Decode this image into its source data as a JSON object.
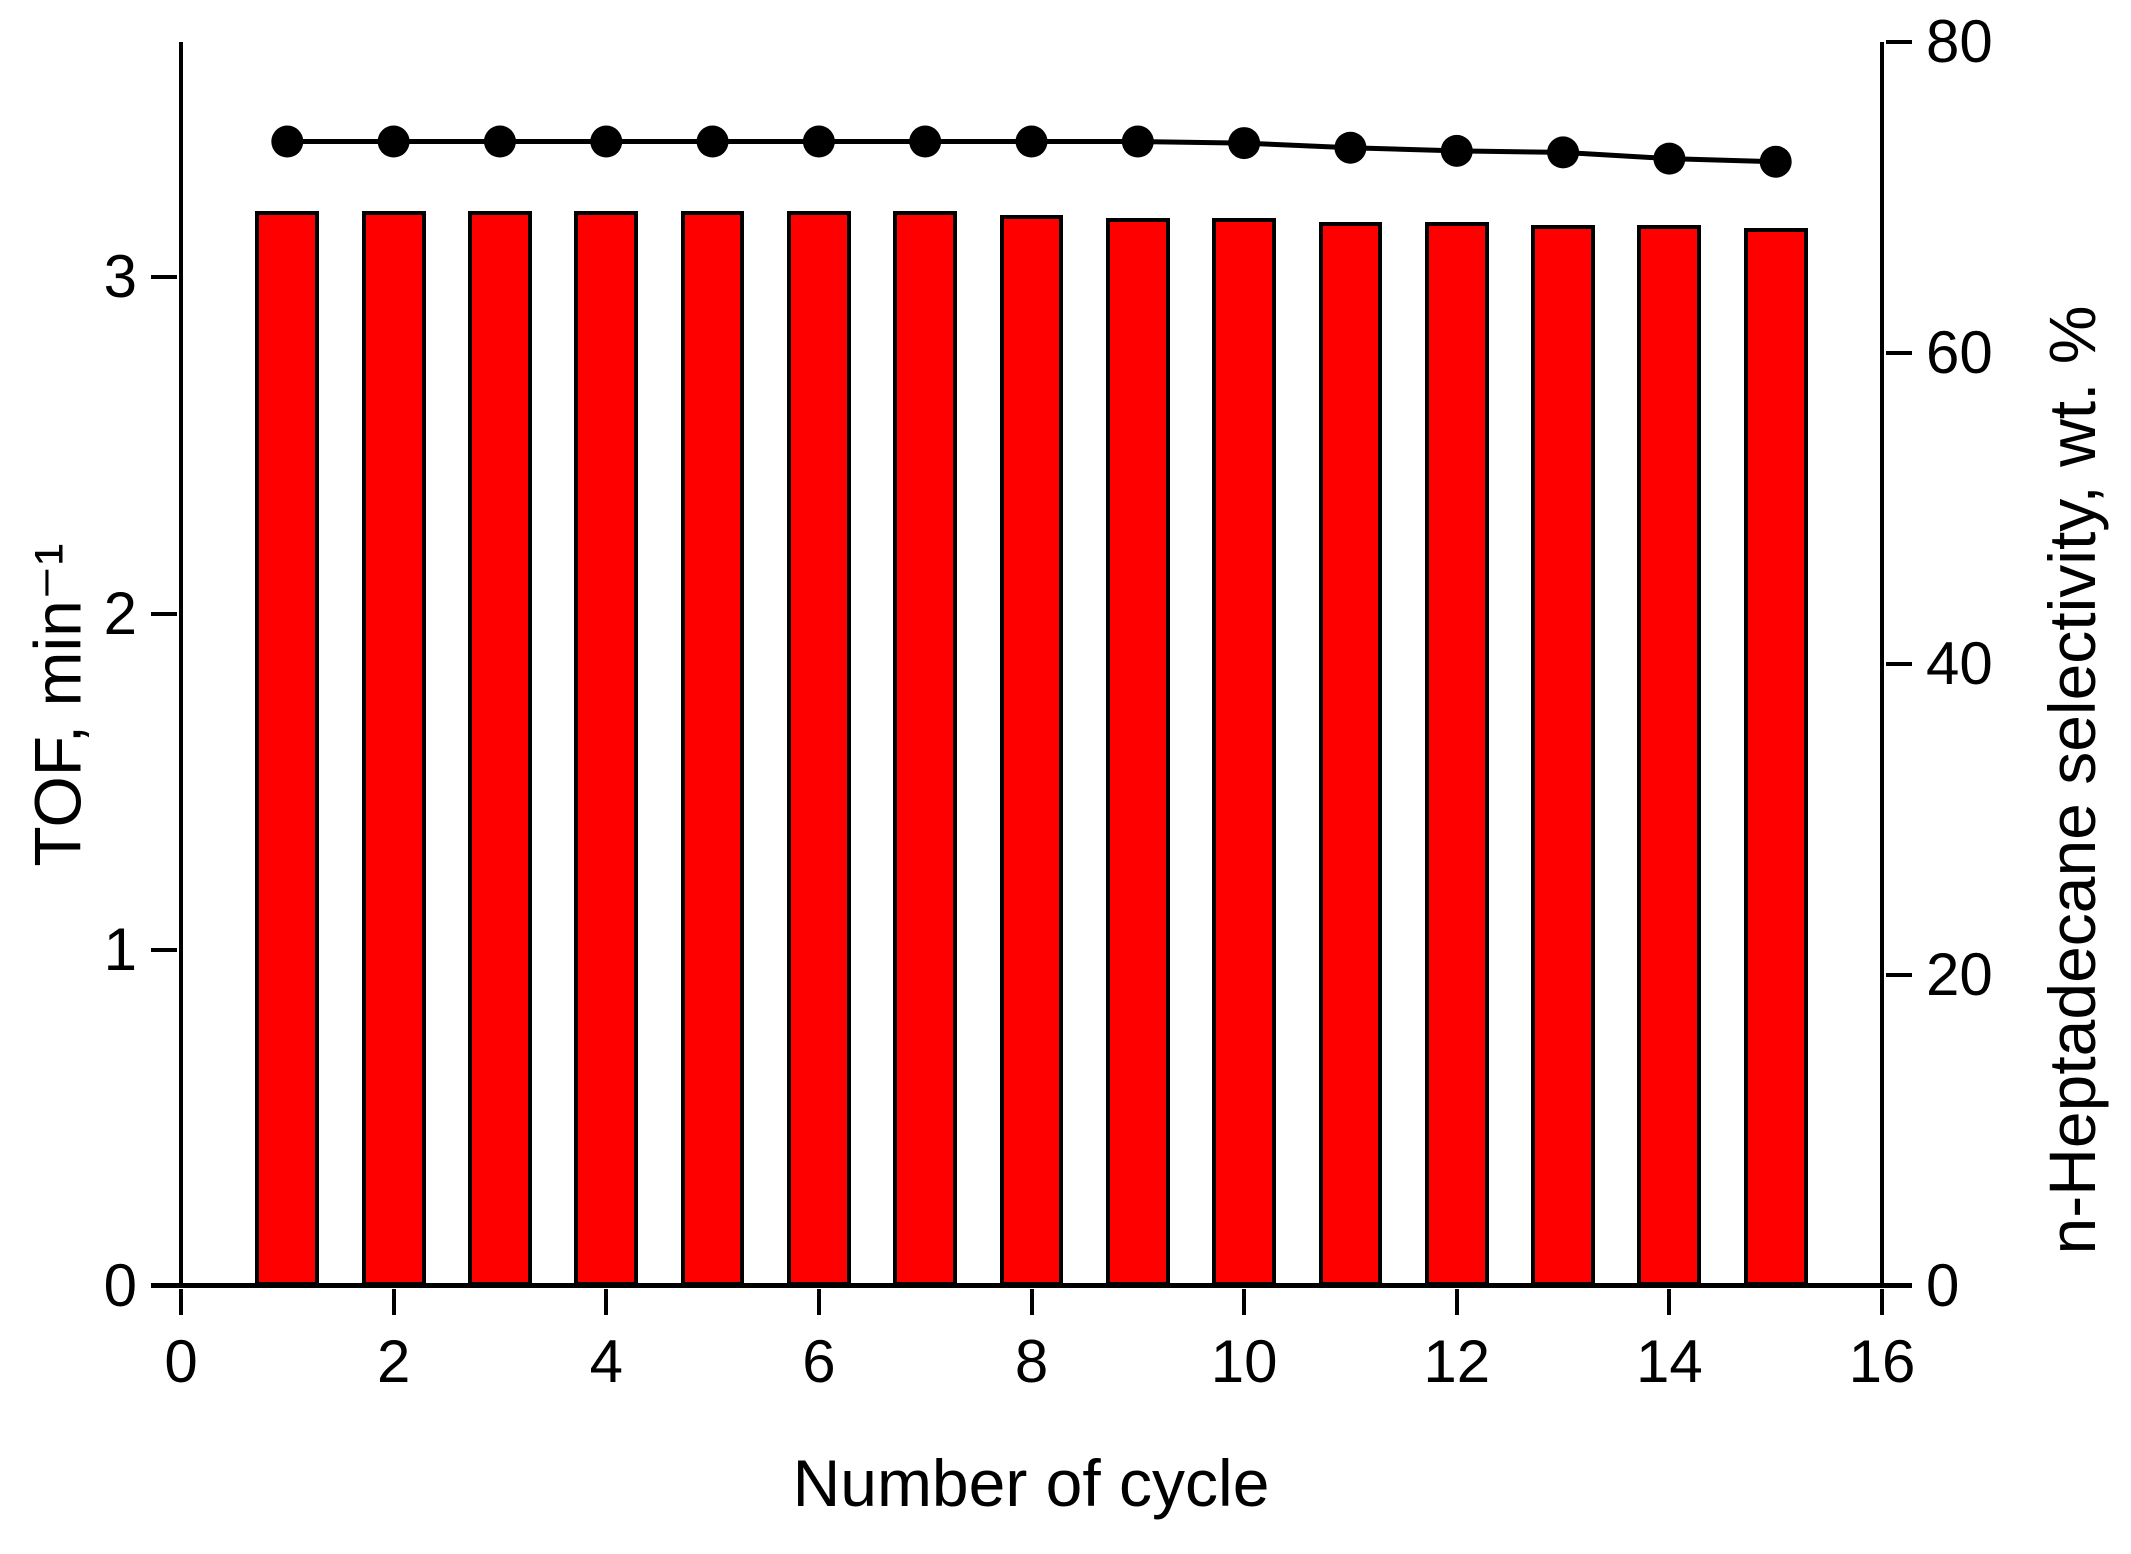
{
  "figure": {
    "background_color": "#FFFFFF",
    "bar_color": "#FF0000",
    "bar_border_color": "#000000",
    "line_color": "#000000",
    "marker": "filled-circle"
  },
  "chart_data": {
    "type": "bar",
    "subtype": "dual-axis bar + line",
    "title": "",
    "xlabel": "Number of cycle",
    "ylabel_left": "TOF, min⁻¹",
    "ylabel_right": "n-Heptadecane selectivity, wt. %",
    "categories": [
      1,
      2,
      3,
      4,
      5,
      6,
      7,
      8,
      9,
      10,
      11,
      12,
      13,
      14,
      15
    ],
    "series": [
      {
        "name": "TOF",
        "type": "bar",
        "axis": "left",
        "color": "#FF0000",
        "values": [
          3.19,
          3.19,
          3.19,
          3.19,
          3.19,
          3.19,
          3.19,
          3.18,
          3.17,
          3.17,
          3.16,
          3.16,
          3.15,
          3.15,
          3.14
        ]
      },
      {
        "name": "n-Heptadecane selectivity",
        "type": "line",
        "axis": "right",
        "color": "#000000",
        "values": [
          73.6,
          73.6,
          73.6,
          73.6,
          73.6,
          73.6,
          73.6,
          73.6,
          73.6,
          73.5,
          73.2,
          73.0,
          72.9,
          72.5,
          72.3
        ]
      }
    ],
    "xlim": [
      0,
      16
    ],
    "ylim_left": [
      0,
      3.7
    ],
    "ylim_right": [
      0,
      80
    ],
    "xticks": [
      0,
      2,
      4,
      6,
      8,
      10,
      12,
      14,
      16
    ],
    "yticks_left": [
      0,
      1,
      2,
      3
    ],
    "yticks_right": [
      0,
      20,
      40,
      60,
      80
    ],
    "bar_width_fraction": 0.6,
    "grid": false,
    "legend_position": "none"
  }
}
